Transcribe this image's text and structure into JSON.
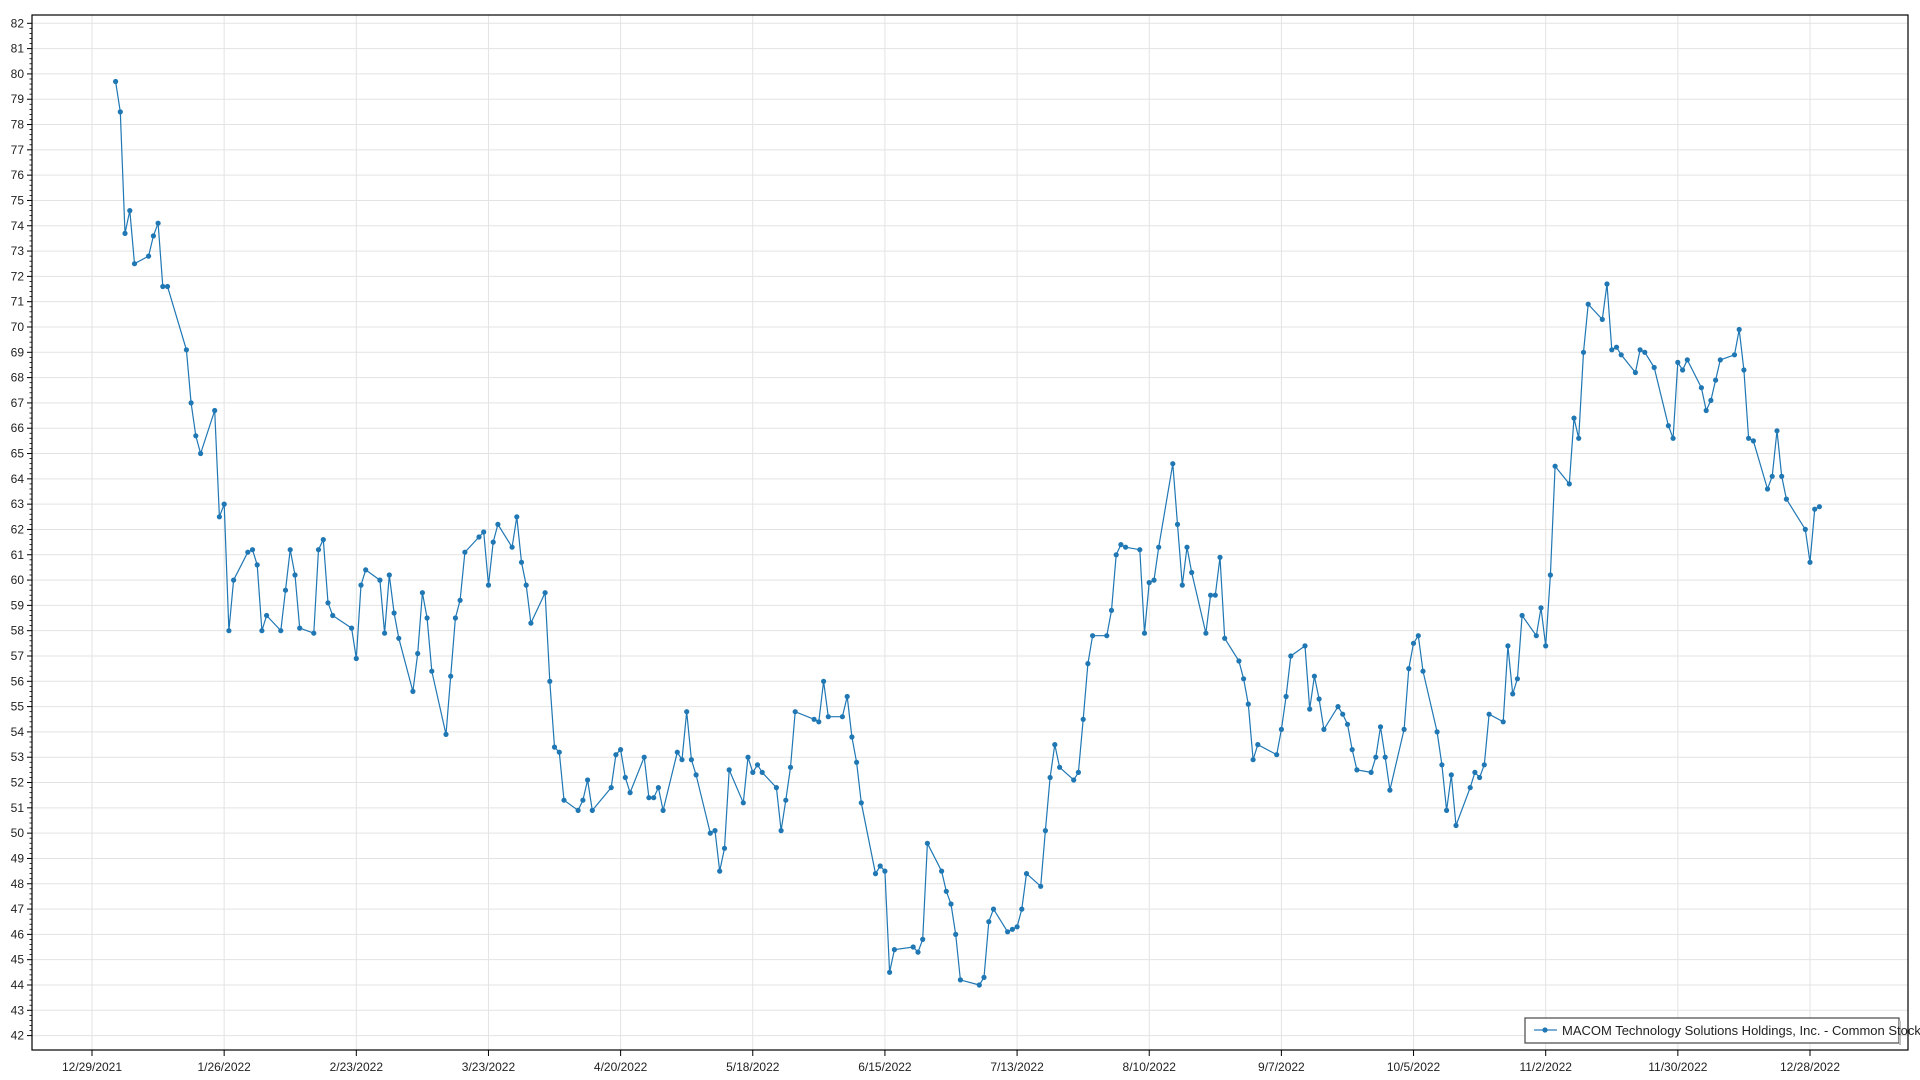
{
  "chart_data": {
    "type": "line",
    "title": "",
    "xlabel": "",
    "ylabel": "",
    "ylim": [
      42,
      82
    ],
    "y_ticks": [
      "42",
      "43",
      "44",
      "45",
      "46",
      "47",
      "48",
      "49",
      "50",
      "51",
      "52",
      "53",
      "54",
      "55",
      "56",
      "57",
      "58",
      "59",
      "60",
      "61",
      "62",
      "63",
      "64",
      "65",
      "66",
      "67",
      "68",
      "69",
      "70",
      "71",
      "72",
      "73",
      "74",
      "75",
      "76",
      "77",
      "78",
      "79",
      "80",
      "81",
      "82"
    ],
    "x_ticks": [
      "12/29/2021",
      "1/26/2022",
      "2/23/2022",
      "3/23/2022",
      "4/20/2022",
      "5/18/2022",
      "6/15/2022",
      "7/13/2022",
      "8/10/2022",
      "9/7/2022",
      "10/5/2022",
      "11/2/2022",
      "11/30/2022",
      "12/28/2022"
    ],
    "grid": true,
    "legend_position": "bottom-right",
    "series": [
      {
        "name": "MACOM Technology Solutions Holdings, Inc. - Common Stock",
        "color": "#1f77b4",
        "points": [
          [
            "1/3/2022",
            79.7
          ],
          [
            "1/4/2022",
            78.5
          ],
          [
            "1/5/2022",
            73.7
          ],
          [
            "1/6/2022",
            74.6
          ],
          [
            "1/7/2022",
            72.5
          ],
          [
            "1/10/2022",
            72.8
          ],
          [
            "1/11/2022",
            73.6
          ],
          [
            "1/12/2022",
            74.1
          ],
          [
            "1/13/2022",
            71.6
          ],
          [
            "1/14/2022",
            71.6
          ],
          [
            "1/18/2022",
            69.1
          ],
          [
            "1/19/2022",
            67.0
          ],
          [
            "1/20/2022",
            65.7
          ],
          [
            "1/21/2022",
            65.0
          ],
          [
            "1/24/2022",
            66.7
          ],
          [
            "1/25/2022",
            62.5
          ],
          [
            "1/26/2022",
            63.0
          ],
          [
            "1/27/2022",
            58.0
          ],
          [
            "1/28/2022",
            60.0
          ],
          [
            "1/31/2022",
            61.1
          ],
          [
            "2/1/2022",
            61.2
          ],
          [
            "2/2/2022",
            60.6
          ],
          [
            "2/3/2022",
            58.0
          ],
          [
            "2/4/2022",
            58.6
          ],
          [
            "2/7/2022",
            58.0
          ],
          [
            "2/8/2022",
            59.6
          ],
          [
            "2/9/2022",
            61.2
          ],
          [
            "2/10/2022",
            60.2
          ],
          [
            "2/11/2022",
            58.1
          ],
          [
            "2/14/2022",
            57.9
          ],
          [
            "2/15/2022",
            61.2
          ],
          [
            "2/16/2022",
            61.6
          ],
          [
            "2/17/2022",
            59.1
          ],
          [
            "2/18/2022",
            58.6
          ],
          [
            "2/22/2022",
            58.1
          ],
          [
            "2/23/2022",
            56.9
          ],
          [
            "2/24/2022",
            59.8
          ],
          [
            "2/25/2022",
            60.4
          ],
          [
            "2/28/2022",
            60.0
          ],
          [
            "3/1/2022",
            57.9
          ],
          [
            "3/2/2022",
            60.2
          ],
          [
            "3/3/2022",
            58.7
          ],
          [
            "3/4/2022",
            57.7
          ],
          [
            "3/7/2022",
            55.6
          ],
          [
            "3/8/2022",
            57.1
          ],
          [
            "3/9/2022",
            59.5
          ],
          [
            "3/10/2022",
            58.5
          ],
          [
            "3/11/2022",
            56.4
          ],
          [
            "3/14/2022",
            53.9
          ],
          [
            "3/15/2022",
            56.2
          ],
          [
            "3/16/2022",
            58.5
          ],
          [
            "3/17/2022",
            59.2
          ],
          [
            "3/18/2022",
            61.1
          ],
          [
            "3/21/2022",
            61.7
          ],
          [
            "3/22/2022",
            61.9
          ],
          [
            "3/23/2022",
            59.8
          ],
          [
            "3/24/2022",
            61.5
          ],
          [
            "3/25/2022",
            62.2
          ],
          [
            "3/28/2022",
            61.3
          ],
          [
            "3/29/2022",
            62.5
          ],
          [
            "3/30/2022",
            60.7
          ],
          [
            "3/31/2022",
            59.8
          ],
          [
            "4/1/2022",
            58.3
          ],
          [
            "4/4/2022",
            59.5
          ],
          [
            "4/5/2022",
            56.0
          ],
          [
            "4/6/2022",
            53.4
          ],
          [
            "4/7/2022",
            53.2
          ],
          [
            "4/8/2022",
            51.3
          ],
          [
            "4/11/2022",
            50.9
          ],
          [
            "4/12/2022",
            51.3
          ],
          [
            "4/13/2022",
            52.1
          ],
          [
            "4/14/2022",
            50.9
          ],
          [
            "4/18/2022",
            51.8
          ],
          [
            "4/19/2022",
            53.1
          ],
          [
            "4/20/2022",
            53.3
          ],
          [
            "4/21/2022",
            52.2
          ],
          [
            "4/22/2022",
            51.6
          ],
          [
            "4/25/2022",
            53.0
          ],
          [
            "4/26/2022",
            51.4
          ],
          [
            "4/27/2022",
            51.4
          ],
          [
            "4/28/2022",
            51.8
          ],
          [
            "4/29/2022",
            50.9
          ],
          [
            "5/2/2022",
            53.2
          ],
          [
            "5/3/2022",
            52.9
          ],
          [
            "5/4/2022",
            54.8
          ],
          [
            "5/5/2022",
            52.9
          ],
          [
            "5/6/2022",
            52.3
          ],
          [
            "5/9/2022",
            50.0
          ],
          [
            "5/10/2022",
            50.1
          ],
          [
            "5/11/2022",
            48.5
          ],
          [
            "5/12/2022",
            49.4
          ],
          [
            "5/13/2022",
            52.5
          ],
          [
            "5/16/2022",
            51.2
          ],
          [
            "5/17/2022",
            53.0
          ],
          [
            "5/18/2022",
            52.4
          ],
          [
            "5/19/2022",
            52.7
          ],
          [
            "5/20/2022",
            52.4
          ],
          [
            "5/23/2022",
            51.8
          ],
          [
            "5/24/2022",
            50.1
          ],
          [
            "5/25/2022",
            51.3
          ],
          [
            "5/26/2022",
            52.6
          ],
          [
            "5/27/2022",
            54.8
          ],
          [
            "5/31/2022",
            54.5
          ],
          [
            "6/1/2022",
            54.4
          ],
          [
            "6/2/2022",
            56.0
          ],
          [
            "6/3/2022",
            54.6
          ],
          [
            "6/6/2022",
            54.6
          ],
          [
            "6/7/2022",
            55.4
          ],
          [
            "6/8/2022",
            53.8
          ],
          [
            "6/9/2022",
            52.8
          ],
          [
            "6/10/2022",
            51.2
          ],
          [
            "6/13/2022",
            48.4
          ],
          [
            "6/14/2022",
            48.7
          ],
          [
            "6/15/2022",
            48.5
          ],
          [
            "6/16/2022",
            44.5
          ],
          [
            "6/17/2022",
            45.4
          ],
          [
            "6/21/2022",
            45.5
          ],
          [
            "6/22/2022",
            45.3
          ],
          [
            "6/23/2022",
            45.8
          ],
          [
            "6/24/2022",
            49.6
          ],
          [
            "6/27/2022",
            48.5
          ],
          [
            "6/28/2022",
            47.7
          ],
          [
            "6/29/2022",
            47.2
          ],
          [
            "6/30/2022",
            46.0
          ],
          [
            "7/1/2022",
            44.2
          ],
          [
            "7/5/2022",
            44.0
          ],
          [
            "7/6/2022",
            44.3
          ],
          [
            "7/7/2022",
            46.5
          ],
          [
            "7/8/2022",
            47.0
          ],
          [
            "7/11/2022",
            46.1
          ],
          [
            "7/12/2022",
            46.2
          ],
          [
            "7/13/2022",
            46.3
          ],
          [
            "7/14/2022",
            47.0
          ],
          [
            "7/15/2022",
            48.4
          ],
          [
            "7/18/2022",
            47.9
          ],
          [
            "7/19/2022",
            50.1
          ],
          [
            "7/20/2022",
            52.2
          ],
          [
            "7/21/2022",
            53.5
          ],
          [
            "7/22/2022",
            52.6
          ],
          [
            "7/25/2022",
            52.1
          ],
          [
            "7/26/2022",
            52.4
          ],
          [
            "7/27/2022",
            54.5
          ],
          [
            "7/28/2022",
            56.7
          ],
          [
            "7/29/2022",
            57.8
          ],
          [
            "8/1/2022",
            57.8
          ],
          [
            "8/2/2022",
            58.8
          ],
          [
            "8/3/2022",
            61.0
          ],
          [
            "8/4/2022",
            61.4
          ],
          [
            "8/5/2022",
            61.3
          ],
          [
            "8/8/2022",
            61.2
          ],
          [
            "8/9/2022",
            57.9
          ],
          [
            "8/10/2022",
            59.9
          ],
          [
            "8/11/2022",
            60.0
          ],
          [
            "8/12/2022",
            61.3
          ],
          [
            "8/15/2022",
            64.6
          ],
          [
            "8/16/2022",
            62.2
          ],
          [
            "8/17/2022",
            59.8
          ],
          [
            "8/18/2022",
            61.3
          ],
          [
            "8/19/2022",
            60.3
          ],
          [
            "8/22/2022",
            57.9
          ],
          [
            "8/23/2022",
            59.4
          ],
          [
            "8/24/2022",
            59.4
          ],
          [
            "8/25/2022",
            60.9
          ],
          [
            "8/26/2022",
            57.7
          ],
          [
            "8/29/2022",
            56.8
          ],
          [
            "8/30/2022",
            56.1
          ],
          [
            "8/31/2022",
            55.1
          ],
          [
            "9/1/2022",
            52.9
          ],
          [
            "9/2/2022",
            53.5
          ],
          [
            "9/6/2022",
            53.1
          ],
          [
            "9/7/2022",
            54.1
          ],
          [
            "9/8/2022",
            55.4
          ],
          [
            "9/9/2022",
            57.0
          ],
          [
            "9/12/2022",
            57.4
          ],
          [
            "9/13/2022",
            54.9
          ],
          [
            "9/14/2022",
            56.2
          ],
          [
            "9/15/2022",
            55.3
          ],
          [
            "9/16/2022",
            54.1
          ],
          [
            "9/19/2022",
            55.0
          ],
          [
            "9/20/2022",
            54.7
          ],
          [
            "9/21/2022",
            54.3
          ],
          [
            "9/22/2022",
            53.3
          ],
          [
            "9/23/2022",
            52.5
          ],
          [
            "9/26/2022",
            52.4
          ],
          [
            "9/27/2022",
            53.0
          ],
          [
            "9/28/2022",
            54.2
          ],
          [
            "9/29/2022",
            53.0
          ],
          [
            "9/30/2022",
            51.7
          ],
          [
            "10/3/2022",
            54.1
          ],
          [
            "10/4/2022",
            56.5
          ],
          [
            "10/5/2022",
            57.5
          ],
          [
            "10/6/2022",
            57.8
          ],
          [
            "10/7/2022",
            56.4
          ],
          [
            "10/10/2022",
            54.0
          ],
          [
            "10/11/2022",
            52.7
          ],
          [
            "10/12/2022",
            50.9
          ],
          [
            "10/13/2022",
            52.3
          ],
          [
            "10/14/2022",
            50.3
          ],
          [
            "10/17/2022",
            51.8
          ],
          [
            "10/18/2022",
            52.4
          ],
          [
            "10/19/2022",
            52.2
          ],
          [
            "10/20/2022",
            52.7
          ],
          [
            "10/21/2022",
            54.7
          ],
          [
            "10/24/2022",
            54.4
          ],
          [
            "10/25/2022",
            57.4
          ],
          [
            "10/26/2022",
            55.5
          ],
          [
            "10/27/2022",
            56.1
          ],
          [
            "10/28/2022",
            58.6
          ],
          [
            "10/31/2022",
            57.8
          ],
          [
            "11/1/2022",
            58.9
          ],
          [
            "11/2/2022",
            57.4
          ],
          [
            "11/3/2022",
            60.2
          ],
          [
            "11/4/2022",
            64.5
          ],
          [
            "11/7/2022",
            63.8
          ],
          [
            "11/8/2022",
            66.4
          ],
          [
            "11/9/2022",
            65.6
          ],
          [
            "11/10/2022",
            69.0
          ],
          [
            "11/11/2022",
            70.9
          ],
          [
            "11/14/2022",
            70.3
          ],
          [
            "11/15/2022",
            71.7
          ],
          [
            "11/16/2022",
            69.1
          ],
          [
            "11/17/2022",
            69.2
          ],
          [
            "11/18/2022",
            68.9
          ],
          [
            "11/21/2022",
            68.2
          ],
          [
            "11/22/2022",
            69.1
          ],
          [
            "11/23/2022",
            69.0
          ],
          [
            "11/25/2022",
            68.4
          ],
          [
            "11/28/2022",
            66.1
          ],
          [
            "11/29/2022",
            65.6
          ],
          [
            "11/30/2022",
            68.6
          ],
          [
            "12/1/2022",
            68.3
          ],
          [
            "12/2/2022",
            68.7
          ],
          [
            "12/5/2022",
            67.6
          ],
          [
            "12/6/2022",
            66.7
          ],
          [
            "12/7/2022",
            67.1
          ],
          [
            "12/8/2022",
            67.9
          ],
          [
            "12/9/2022",
            68.7
          ],
          [
            "12/12/2022",
            68.9
          ],
          [
            "12/13/2022",
            69.9
          ],
          [
            "12/14/2022",
            68.3
          ],
          [
            "12/15/2022",
            65.6
          ],
          [
            "12/16/2022",
            65.5
          ],
          [
            "12/19/2022",
            63.6
          ],
          [
            "12/20/2022",
            64.1
          ],
          [
            "12/21/2022",
            65.9
          ],
          [
            "12/22/2022",
            64.1
          ],
          [
            "12/23/2022",
            63.2
          ],
          [
            "12/27/2022",
            62.0
          ],
          [
            "12/28/2022",
            60.7
          ],
          [
            "12/29/2022",
            62.8
          ],
          [
            "12/30/2022",
            62.9
          ]
        ]
      }
    ]
  }
}
